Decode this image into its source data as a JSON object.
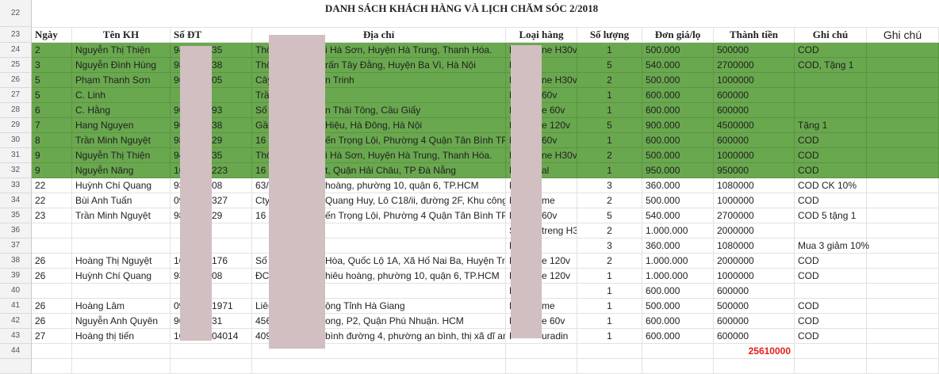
{
  "title": "DANH SÁCH KHÁCH HÀNG VÀ LỊCH CHĂM SÓC 2/2018",
  "row_numbers": {
    "title_row": "22",
    "header_row": "23"
  },
  "headers": [
    "Ngày",
    "Tên KH",
    "Số ĐT",
    "Địa chỉ",
    "Loại hàng",
    "Số lượng",
    "Đơn giá/lọ",
    "Thành tiền",
    "Ghi chú",
    "Ghi chú"
  ],
  "colors": {
    "highlight_green": "#6aa84f",
    "total_red": "#e0201b",
    "redaction": "#d2bfc1"
  },
  "rows": [
    {
      "n": "24",
      "green": true,
      "date": "2",
      "name": "Nguyễn Thị Thiện",
      "phone": [
        "94",
        "35"
      ],
      "addr": [
        "Thô",
        "i Hà Sơn, Huyện Hà Trung, Thanh Hóa."
      ],
      "product": [
        "F",
        "ne H30v"
      ],
      "qty": "1",
      "price": "500.000",
      "total": "500000",
      "note": "COD"
    },
    {
      "n": "25",
      "green": true,
      "date": "3",
      "name": "Nguyễn Đình Hùng",
      "phone": [
        "98",
        "38"
      ],
      "addr": [
        "Thô",
        "rấn Tây Đằng, Huyện Ba Vì, Hà Nội"
      ],
      "product": [
        "F",
        ""
      ],
      "qty": "5",
      "price": "540.000",
      "total": "2700000",
      "note": "COD, Tặng 1"
    },
    {
      "n": "26",
      "green": true,
      "date": "5",
      "name": "Phạm Thanh Sơn",
      "phone": [
        "96",
        "05"
      ],
      "addr": [
        "Cây",
        "n Trinh"
      ],
      "product": [
        "F",
        "ne H30v"
      ],
      "qty": "2",
      "price": "500.000",
      "total": "1000000",
      "note": ""
    },
    {
      "n": "27",
      "green": true,
      "date": "5",
      "name": "C. Linh",
      "phone": [
        "",
        ""
      ],
      "addr": [
        "Trầ",
        ""
      ],
      "product": [
        "E",
        "60v"
      ],
      "qty": "1",
      "price": "600.000",
      "total": "600000",
      "note": ""
    },
    {
      "n": "28",
      "green": true,
      "date": "6",
      "name": "C. Hằng",
      "phone": [
        "96",
        "93"
      ],
      "addr": [
        "Số",
        "n Thái Tông, Cầu Giấy"
      ],
      "product": [
        "E",
        "e 60v"
      ],
      "qty": "1",
      "price": "600.000",
      "total": "600000",
      "note": ""
    },
    {
      "n": "29",
      "green": true,
      "date": "7",
      "name": "Hang Nguyen",
      "phone": [
        "96",
        "38"
      ],
      "addr": [
        "Gần",
        " Hiệu, Hà Đông, Hà Nội"
      ],
      "product": [
        "E",
        "e 120v"
      ],
      "qty": "5",
      "price": "900.000",
      "total": "4500000",
      "note": "Tặng 1"
    },
    {
      "n": "30",
      "green": true,
      "date": "8",
      "name": "Trần Minh Nguyệt",
      "phone": [
        "98",
        "29"
      ],
      "addr": [
        "16",
        "ến Trọng Lội, Phường 4 Quận Tân Bình TP.H"
      ],
      "product": [
        "E",
        "60v"
      ],
      "qty": "1",
      "price": "600.000",
      "total": "600000",
      "note": "COD"
    },
    {
      "n": "31",
      "green": true,
      "date": "9",
      "name": "Nguyễn Thị Thiện",
      "phone": [
        "94",
        "35"
      ],
      "addr": [
        "Thô",
        "i Hà Sơn, Huyện Hà Trung, Thanh Hóa."
      ],
      "product": [
        "F",
        "ne H30v"
      ],
      "qty": "2",
      "price": "500.000",
      "total": "1000000",
      "note": "COD"
    },
    {
      "n": "32",
      "green": true,
      "date": "9",
      "name": "Nguyễn Năng",
      "phone": [
        "16",
        "223"
      ],
      "addr": [
        "16",
        "t, Quận Hải Châu, TP Đà Nẵng"
      ],
      "product": [
        "K",
        "al"
      ],
      "qty": "1",
      "price": "950.000",
      "total": "950000",
      "note": "COD"
    },
    {
      "n": "33",
      "green": false,
      "date": "22",
      "name": "Huỳnh Chí Quang",
      "phone": [
        "93",
        "08"
      ],
      "addr": [
        "63/",
        "hoàng, phường 10, quận 6, TP.HCM"
      ],
      "product": [
        "E",
        ""
      ],
      "qty": "3",
      "price": "360.000",
      "total": "1080000",
      "note": "COD CK 10%"
    },
    {
      "n": "34",
      "green": false,
      "date": "22",
      "name": "Bùi Anh Tuấn",
      "phone": [
        "09",
        " 327"
      ],
      "addr": [
        "Cty",
        " Quang Huy, Lô C18/ii, đường 2F, Khu công"
      ],
      "product": [
        "E",
        "me"
      ],
      "qty": "2",
      "price": "500.000",
      "total": "1000000",
      "note": "COD"
    },
    {
      "n": "35",
      "green": false,
      "date": "23",
      "name": "Trần Minh Nguyệt",
      "phone": [
        "98",
        "29"
      ],
      "addr": [
        "16",
        "ến Trọng Lội, Phường 4 Quận Tân Bình TP.H"
      ],
      "product": [
        "E",
        "60v"
      ],
      "qty": "5",
      "price": "540.000",
      "total": "2700000",
      "note": "COD 5 tặng 1"
    },
    {
      "n": "36",
      "green": false,
      "date": "",
      "name": "",
      "phone": [
        "",
        ""
      ],
      "addr": [
        "",
        ""
      ],
      "product": [
        "S",
        "treng H3"
      ],
      "qty": "2",
      "price": "1.000.000",
      "total": "2000000",
      "note": ""
    },
    {
      "n": "37",
      "green": false,
      "date": "",
      "name": "",
      "phone": [
        "",
        ""
      ],
      "addr": [
        "",
        ""
      ],
      "product": [
        "E",
        ""
      ],
      "qty": "3",
      "price": "360.000",
      "total": "1080000",
      "note": "Mua 3 giảm 10%"
    },
    {
      "n": "38",
      "green": false,
      "date": "26",
      "name": "Hoàng Thị Nguyệt",
      "phone": [
        "16",
        "176"
      ],
      "addr": [
        "Số",
        " Hòa, Quốc Lộ 1A, Xã Hố Nai Ba, Huyện Trả"
      ],
      "product": [
        "E",
        "e 120v"
      ],
      "qty": "2",
      "price": "1.000.000",
      "total": "2000000",
      "note": "COD"
    },
    {
      "n": "39",
      "green": false,
      "date": "26",
      "name": "Huỳnh Chí Quang",
      "phone": [
        "93",
        "08"
      ],
      "addr": [
        "ĐC",
        "hiêu hoàng, phường 10, quận 6, TP.HCM"
      ],
      "product": [
        "E",
        "e 120v"
      ],
      "qty": "1",
      "price": "1.000.000",
      "total": "1000000",
      "note": "COD"
    },
    {
      "n": "40",
      "green": false,
      "date": "",
      "name": "",
      "phone": [
        "",
        ""
      ],
      "addr": [
        "",
        ""
      ],
      "product": [
        "F",
        ""
      ],
      "qty": "1",
      "price": "600.000",
      "total": "600000",
      "note": ""
    },
    {
      "n": "41",
      "green": false,
      "date": "26",
      "name": "Hoàng Lâm",
      "phone": [
        "09",
        "1971"
      ],
      "addr": [
        "Liên",
        "ộng Tỉnh Hà Giang"
      ],
      "product": [
        "E",
        "me"
      ],
      "qty": "1",
      "price": "500.000",
      "total": "500000",
      "note": "COD"
    },
    {
      "n": "42",
      "green": false,
      "date": "26",
      "name": "Nguyễn Anh Quyên",
      "phone": [
        "96",
        "31"
      ],
      "addr": [
        "456",
        "ong, P2, Quận Phú Nhuận. HCM"
      ],
      "product": [
        "E",
        "e 60v"
      ],
      "qty": "1",
      "price": "600.000",
      "total": "600000",
      "note": "COD"
    },
    {
      "n": "43",
      "green": false,
      "date": "27",
      "name": "Hoàng thị tiến",
      "phone": [
        "16",
        "04014"
      ],
      "addr": [
        "409",
        "bình đường 4, phường an bình, thị xã dĩ an, "
      ],
      "product": [
        "P",
        "uradin"
      ],
      "qty": "1",
      "price": "600.000",
      "total": "600000",
      "note": "COD"
    }
  ],
  "summary": {
    "row_number": "44",
    "grand_total": "25610000"
  }
}
